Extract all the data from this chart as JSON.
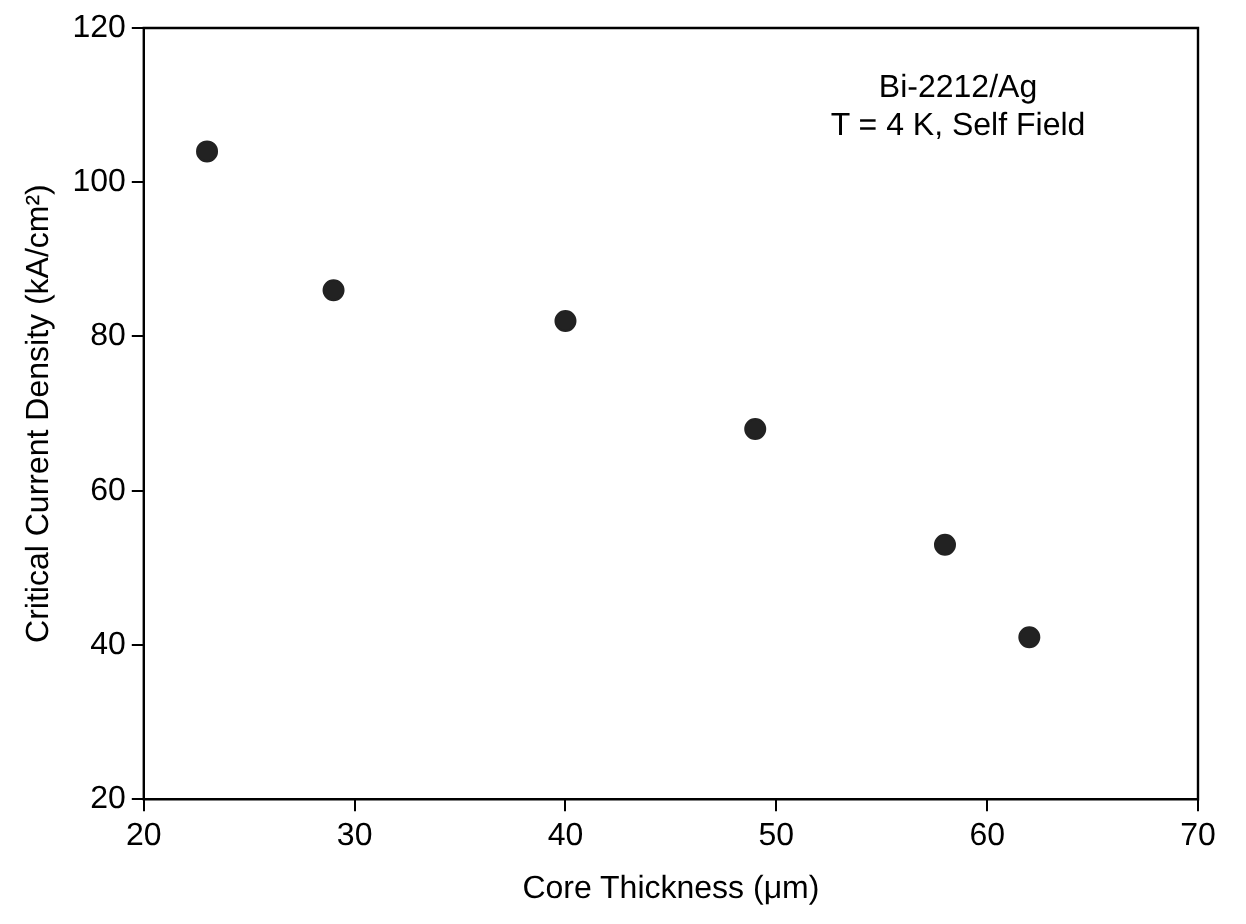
{
  "chart_data": {
    "type": "scatter",
    "xlabel": "Core Thickness (μm)",
    "ylabel": "Critical Current Density (kA/cm²)",
    "annotations": [
      "Bi-2212/Ag",
      "T = 4 K, Self Field"
    ],
    "x": [
      23,
      29,
      40,
      49,
      58,
      62
    ],
    "series": [
      {
        "color": "#222222",
        "values": [
          104,
          86,
          82,
          68,
          53,
          41
        ]
      }
    ],
    "xlim": [
      20,
      70
    ],
    "xticks": [
      20,
      30,
      40,
      50,
      60,
      70
    ],
    "ylim": [
      20,
      120
    ],
    "yticks": [
      20,
      40,
      60,
      80,
      100,
      120
    ],
    "grid": false,
    "legend": false,
    "marker": "circle"
  }
}
